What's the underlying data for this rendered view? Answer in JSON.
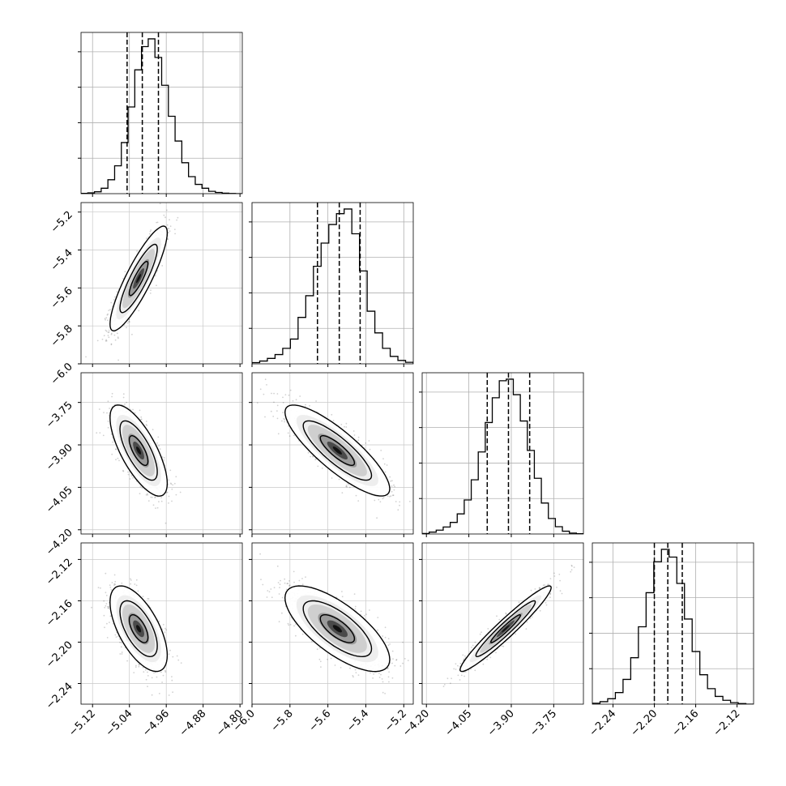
{
  "chart_data": {
    "type": "corner",
    "grid": true,
    "parameters": [
      {
        "ticks": [
          "−5.12",
          "−5.04",
          "−4.96",
          "−4.88",
          "−4.80"
        ],
        "tick_values": [
          -5.12,
          -5.04,
          -4.96,
          -4.88,
          -4.8
        ],
        "range": [
          -5.145,
          -4.795
        ],
        "quantiles": [
          -5.045,
          -5.012,
          -4.977
        ]
      },
      {
        "ticks": [
          "−6.0",
          "−5.8",
          "−5.6",
          "−5.4",
          "−5.2"
        ],
        "tick_values": [
          -6.0,
          -5.8,
          -5.6,
          -5.4,
          -5.2
        ],
        "range": [
          -6.0,
          -5.15
        ],
        "quantiles": [
          -5.655,
          -5.54,
          -5.43
        ]
      },
      {
        "ticks": [
          "−4.20",
          "−4.05",
          "−3.90",
          "−3.75"
        ],
        "tick_values": [
          -4.2,
          -4.05,
          -3.9,
          -3.75
        ],
        "range": [
          -4.215,
          -3.645
        ],
        "quantiles": [
          -3.985,
          -3.91,
          -3.835
        ]
      },
      {
        "ticks": [
          "−2.24",
          "−2.20",
          "−2.16",
          "−2.12"
        ],
        "tick_values": [
          -2.24,
          -2.2,
          -2.16,
          -2.12
        ],
        "range": [
          -2.26,
          -2.104
        ],
        "quantiles": [
          -2.2,
          -2.187,
          -2.173
        ]
      }
    ],
    "histograms": [
      [
        0.002,
        0.005,
        0.012,
        0.035,
        0.09,
        0.18,
        0.33,
        0.56,
        0.8,
        0.95,
        1.0,
        0.88,
        0.7,
        0.5,
        0.34,
        0.2,
        0.11,
        0.06,
        0.035,
        0.015,
        0.008,
        0.003,
        0.001,
        0.0
      ],
      [
        0.008,
        0.018,
        0.035,
        0.06,
        0.1,
        0.16,
        0.3,
        0.44,
        0.63,
        0.78,
        0.9,
        0.97,
        1.0,
        0.84,
        0.6,
        0.34,
        0.2,
        0.1,
        0.048,
        0.022,
        0.01
      ],
      [
        0.003,
        0.012,
        0.025,
        0.045,
        0.075,
        0.13,
        0.22,
        0.35,
        0.53,
        0.72,
        0.88,
        0.99,
        1.0,
        0.9,
        0.73,
        0.54,
        0.36,
        0.2,
        0.1,
        0.047,
        0.018,
        0.006,
        0.002
      ],
      [
        0.006,
        0.016,
        0.035,
        0.075,
        0.16,
        0.3,
        0.5,
        0.72,
        0.92,
        1.0,
        0.95,
        0.78,
        0.55,
        0.34,
        0.19,
        0.1,
        0.05,
        0.025,
        0.01,
        0.004,
        0.0
      ]
    ],
    "pairs": [
      {
        "x": 0,
        "y": 1,
        "center": [
          -5.02,
          -5.55
        ],
        "sd": [
          0.027,
          0.12
        ],
        "corr": 0.87
      },
      {
        "x": 0,
        "y": 2,
        "center": [
          -5.02,
          -3.92
        ],
        "sd": [
          0.027,
          0.07
        ],
        "corr": -0.72
      },
      {
        "x": 1,
        "y": 2,
        "center": [
          -5.55,
          -3.92
        ],
        "sd": [
          0.12,
          0.07
        ],
        "corr": -0.84
      },
      {
        "x": 0,
        "y": 3,
        "center": [
          -5.02,
          -2.187
        ],
        "sd": [
          0.027,
          0.018
        ],
        "corr": -0.62
      },
      {
        "x": 1,
        "y": 3,
        "center": [
          -5.55,
          -2.187
        ],
        "sd": [
          0.12,
          0.018
        ],
        "corr": -0.72
      },
      {
        "x": 2,
        "y": 3,
        "center": [
          -3.92,
          -2.187
        ],
        "sd": [
          0.07,
          0.018
        ],
        "corr": 0.96
      }
    ]
  }
}
